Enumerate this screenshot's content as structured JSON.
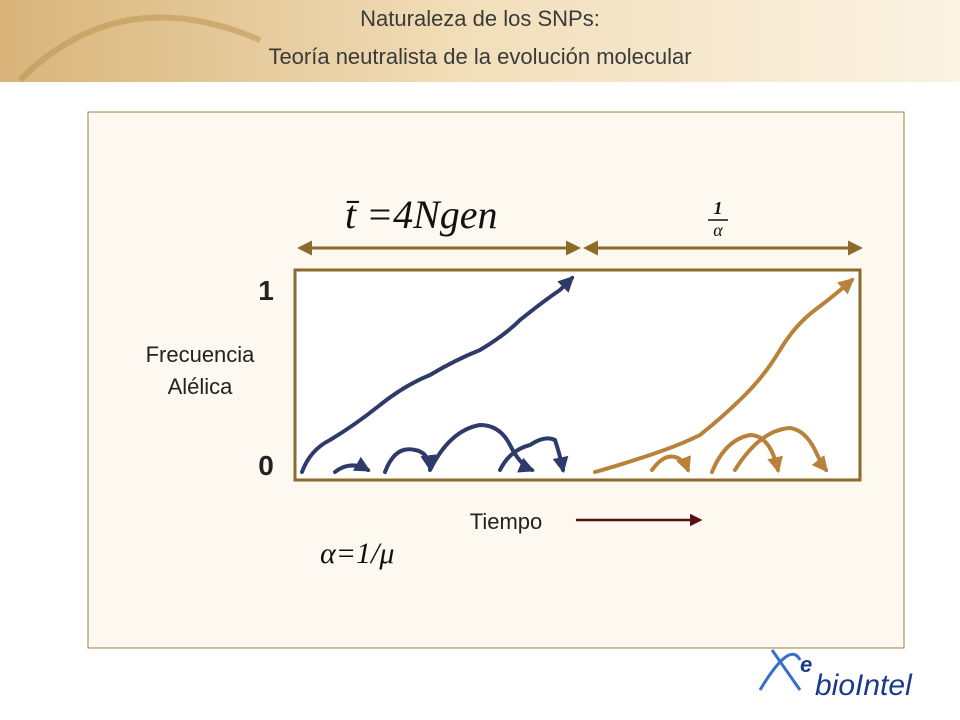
{
  "header": {
    "title_lines": [
      "Naturaleza de los SNPs:",
      "Teoría neutralista de la evolución molecular"
    ]
  },
  "diagram": {
    "formula_fixation": "t̄ =4Ngen",
    "formula_interval": {
      "numerator": "1",
      "denominator": "α"
    },
    "y_top": "1",
    "y_bottom": "0",
    "y_label_lines": [
      "Frecuencia",
      "Alélica"
    ],
    "x_label": "Tiempo",
    "formula_rate": "α=1/μ"
  },
  "logo": {
    "prefix": "e",
    "name": "bioIntel"
  }
}
